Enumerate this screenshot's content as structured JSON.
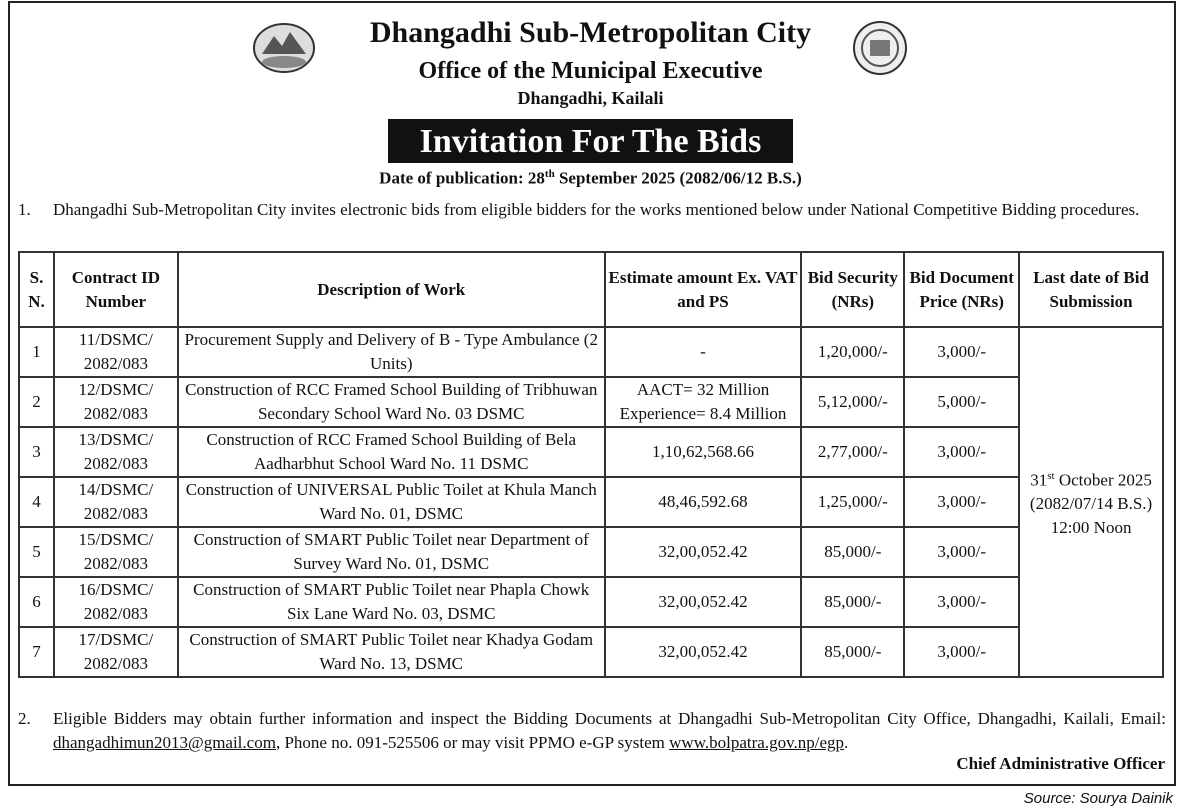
{
  "header": {
    "title": "Dhangadhi Sub-Metropolitan City",
    "subtitle": "Office of the Municipal Executive",
    "location": "Dhangadhi, Kailali",
    "banner": "Invitation For The Bids",
    "publication": {
      "label": "Date of publication:",
      "day": "28",
      "suffix": "th",
      "rest": "September 2025 (2082/06/12 B.S.)"
    }
  },
  "paragraph1": {
    "number": "1.",
    "text": "Dhangadhi Sub-Metropolitan City invites electronic bids from eligible bidders for the works mentioned below under National Competitive Bidding procedures."
  },
  "table": {
    "headers": [
      "S. N.",
      "Contract ID Number",
      "Description of Work",
      "Estimate amount Ex. VAT and PS",
      "Bid Security (NRs)",
      "Bid Document Price (NRs)",
      "Last date of Bid Submission"
    ],
    "rows": [
      {
        "sn": "1",
        "contract_id": [
          "11/DSMC/",
          "2082/083"
        ],
        "description": "Procurement Supply and Delivery of B - Type Ambulance (2 Units)",
        "estimate": "-",
        "bid_security": "1,20,000/-",
        "document_price": "3,000/-"
      },
      {
        "sn": "2",
        "contract_id": [
          "12/DSMC/",
          "2082/083"
        ],
        "description": "Construction of RCC Framed School Building of Tribhuwan Secondary School Ward No. 03 DSMC",
        "estimate": [
          "AACT= 32 Million",
          "Experience= 8.4 Million"
        ],
        "bid_security": "5,12,000/-",
        "document_price": "5,000/-"
      },
      {
        "sn": "3",
        "contract_id": [
          "13/DSMC/",
          "2082/083"
        ],
        "description": "Construction of RCC Framed School Building of Bela Aadharbhut School Ward No. 11 DSMC",
        "estimate": "1,10,62,568.66",
        "bid_security": "2,77,000/-",
        "document_price": "3,000/-"
      },
      {
        "sn": "4",
        "contract_id": [
          "14/DSMC/",
          "2082/083"
        ],
        "description": "Construction of UNIVERSAL Public Toilet at Khula Manch Ward No. 01, DSMC",
        "estimate": "48,46,592.68",
        "bid_security": "1,25,000/-",
        "document_price": "3,000/-"
      },
      {
        "sn": "5",
        "contract_id": [
          "15/DSMC/",
          "2082/083"
        ],
        "description": "Construction of SMART Public Toilet near Department of Survey Ward No. 01, DSMC",
        "estimate": "32,00,052.42",
        "bid_security": "85,000/-",
        "document_price": "3,000/-"
      },
      {
        "sn": "6",
        "contract_id": [
          "16/DSMC/",
          "2082/083"
        ],
        "description": "Construction of SMART Public Toilet near Phapla Chowk Six Lane Ward No. 03, DSMC",
        "estimate": "32,00,052.42",
        "bid_security": "85,000/-",
        "document_price": "3,000/-"
      },
      {
        "sn": "7",
        "contract_id": [
          "17/DSMC/",
          "2082/083"
        ],
        "description": "Construction of SMART Public Toilet near Khadya Godam Ward No. 13, DSMC",
        "estimate": "32,00,052.42",
        "bid_security": "85,000/-",
        "document_price": "3,000/-"
      }
    ],
    "deadline": {
      "day": "31",
      "suffix": "st",
      "month_year": "October 2025",
      "bs_date": "(2082/07/14 B.S.)",
      "time": "12:00 Noon"
    }
  },
  "paragraph2": {
    "number": "2.",
    "text": "Eligible Bidders may obtain further information and inspect the Bidding Documents at Dhangadhi Sub-Metropolitan City Office, Dhangadhi, Kailali, Email:",
    "email": "dhangadhimun2013@gmail.com",
    "text2": ", Phone no. 091-525506 or may visit PPMO e-GP system",
    "url": "www.bolpatra.gov.np/egp",
    "end": "."
  },
  "signature": "Chief Administrative Officer",
  "source": "Source: Sourya Dainik"
}
